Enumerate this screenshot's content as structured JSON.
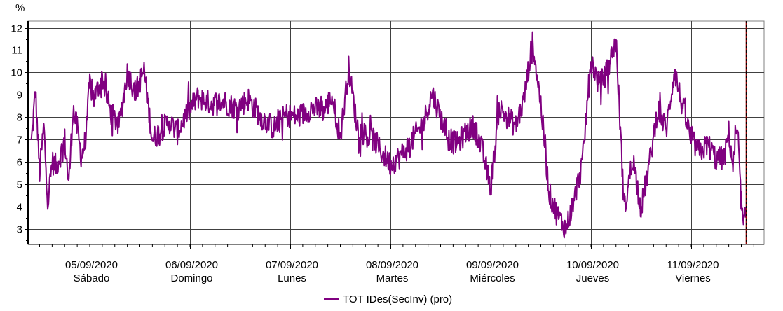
{
  "chart_data": {
    "type": "line",
    "title": "",
    "xlabel": "",
    "ylabel": "",
    "unit_label": "%",
    "ylim": [
      2.3,
      12.3
    ],
    "y_ticks": [
      3,
      4,
      5,
      6,
      7,
      8,
      9,
      10,
      11,
      12
    ],
    "grid": true,
    "legend_position": "bottom",
    "x_range": [
      "2020-09-04T07:00",
      "2020-09-11T12:00"
    ],
    "x_day_labels": [
      {
        "date": "05/09/2020",
        "day": "Sábado",
        "at": "2020-09-05T00:00"
      },
      {
        "date": "06/09/2020",
        "day": "Domingo",
        "at": "2020-09-06T00:00"
      },
      {
        "date": "07/09/2020",
        "day": "Lunes",
        "at": "2020-09-07T00:00"
      },
      {
        "date": "08/09/2020",
        "day": "Martes",
        "at": "2020-09-08T00:00"
      },
      {
        "date": "09/09/2020",
        "day": "Miércoles",
        "at": "2020-09-09T00:00"
      },
      {
        "date": "10/09/2020",
        "day": "Jueves",
        "at": "2020-09-10T00:00"
      },
      {
        "date": "11/09/2020",
        "day": "Viernes",
        "at": "2020-09-11T00:00"
      }
    ],
    "current_time_marker": "2020-09-11T13:10",
    "series": [
      {
        "name": "TOT IDes(SecInv) (pro)",
        "color": "#800080",
        "x": [
          "2020-09-04T10:00",
          "2020-09-04T11:00",
          "2020-09-04T12:00",
          "2020-09-04T13:00",
          "2020-09-04T14:00",
          "2020-09-04T15:00",
          "2020-09-04T16:00",
          "2020-09-04T17:00",
          "2020-09-04T18:00",
          "2020-09-04T19:00",
          "2020-09-04T20:00",
          "2020-09-04T21:00",
          "2020-09-04T22:00",
          "2020-09-04T23:00",
          "2020-09-05T00:00",
          "2020-09-05T01:00",
          "2020-09-05T03:00",
          "2020-09-05T05:00",
          "2020-09-05T07:00",
          "2020-09-05T09:00",
          "2020-09-05T11:00",
          "2020-09-05T13:00",
          "2020-09-05T15:00",
          "2020-09-05T17:00",
          "2020-09-05T19:00",
          "2020-09-05T21:00",
          "2020-09-05T23:00",
          "2020-09-06T02:00",
          "2020-09-06T05:00",
          "2020-09-06T08:00",
          "2020-09-06T11:00",
          "2020-09-06T14:00",
          "2020-09-06T17:00",
          "2020-09-06T20:00",
          "2020-09-06T23:00",
          "2020-09-07T02:00",
          "2020-09-07T05:00",
          "2020-09-07T08:00",
          "2020-09-07T10:00",
          "2020-09-07T12:00",
          "2020-09-07T14:00",
          "2020-09-07T16:00",
          "2020-09-07T18:00",
          "2020-09-07T20:00",
          "2020-09-07T22:00",
          "2020-09-08T00:00",
          "2020-09-08T02:00",
          "2020-09-08T04:00",
          "2020-09-08T06:00",
          "2020-09-08T08:00",
          "2020-09-08T10:00",
          "2020-09-08T12:00",
          "2020-09-08T14:00",
          "2020-09-08T16:00",
          "2020-09-08T18:00",
          "2020-09-08T20:00",
          "2020-09-08T22:00",
          "2020-09-09T00:00",
          "2020-09-09T02:00",
          "2020-09-09T04:00",
          "2020-09-09T06:00",
          "2020-09-09T08:00",
          "2020-09-09T10:00",
          "2020-09-09T12:00",
          "2020-09-09T14:00",
          "2020-09-09T16:00",
          "2020-09-09T18:00",
          "2020-09-09T20:00",
          "2020-09-09T22:00",
          "2020-09-10T00:00",
          "2020-09-10T02:00",
          "2020-09-10T04:00",
          "2020-09-10T06:00",
          "2020-09-10T08:00",
          "2020-09-10T10:00",
          "2020-09-10T12:00",
          "2020-09-10T14:00",
          "2020-09-10T16:00",
          "2020-09-10T18:00",
          "2020-09-10T20:00",
          "2020-09-10T22:00",
          "2020-09-11T00:00",
          "2020-09-11T02:00",
          "2020-09-11T04:00",
          "2020-09-11T06:00",
          "2020-09-11T08:00",
          "2020-09-11T09:00",
          "2020-09-11T10:00",
          "2020-09-11T11:00",
          "2020-09-11T12:00",
          "2020-09-11T12:30",
          "2020-09-11T13:00"
        ],
        "y": [
          6.8,
          9.2,
          5.5,
          7.6,
          4.2,
          6.0,
          5.8,
          6.3,
          7.0,
          5.0,
          8.4,
          7.5,
          6.2,
          7.0,
          9.5,
          8.8,
          9.8,
          8.2,
          7.6,
          10.0,
          9.1,
          10.1,
          7.0,
          7.4,
          7.8,
          7.3,
          8.1,
          8.9,
          8.6,
          8.7,
          8.4,
          8.8,
          8.0,
          7.5,
          8.1,
          8.0,
          8.4,
          8.3,
          8.9,
          7.1,
          10.2,
          7.6,
          7.2,
          7.0,
          6.4,
          5.9,
          6.2,
          6.6,
          7.2,
          7.8,
          9.1,
          8.0,
          7.0,
          6.8,
          7.3,
          7.6,
          6.5,
          4.8,
          8.4,
          8.0,
          7.6,
          8.8,
          11.4,
          8.6,
          4.6,
          3.6,
          3.0,
          4.3,
          6.0,
          10.6,
          9.4,
          10.1,
          11.5,
          3.8,
          6.2,
          3.9,
          5.9,
          8.4,
          7.4,
          10.1,
          8.4,
          7.0,
          6.4,
          6.8,
          6.1,
          6.2,
          7.3,
          5.8,
          7.4,
          4.2,
          3.0,
          3.5
        ]
      }
    ]
  }
}
